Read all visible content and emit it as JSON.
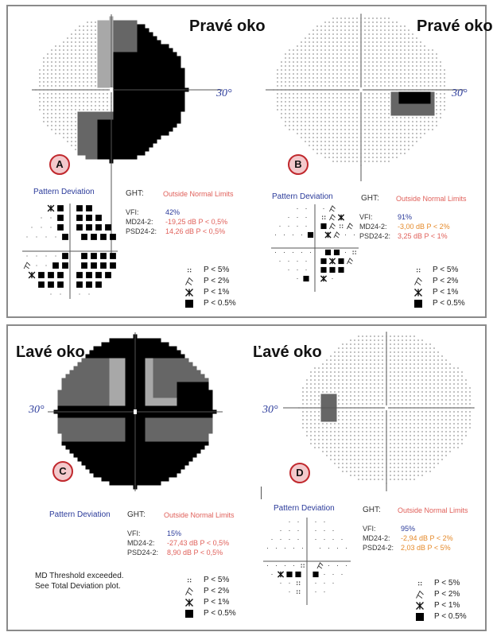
{
  "panels": [
    {
      "id": "A",
      "eye": "Pravé oko",
      "degree": "30°",
      "pd_title": "Pattern Deviation",
      "ght_label": "GHT:",
      "ght_value": "Outside Normal Limits",
      "stats": [
        {
          "label": "VFI:",
          "value": "42%",
          "tone": "blue"
        },
        {
          "label": "MD24-2:",
          "value": "-19,25 dB P < 0,5%",
          "tone": "red"
        },
        {
          "label": "PSD24-2:",
          "value": "14,26 dB P < 0,5%",
          "tone": "red"
        }
      ]
    },
    {
      "id": "B",
      "eye": "Pravé oko",
      "degree": "30°",
      "pd_title": "Pattern Deviation",
      "ght_label": "GHT:",
      "ght_value": "Outside Normal Limits",
      "stats": [
        {
          "label": "VFI:",
          "value": "91%",
          "tone": "blue"
        },
        {
          "label": "MD24-2:",
          "value": "-3,00 dB P < 2%",
          "tone": "orange"
        },
        {
          "label": "PSD24-2:",
          "value": "3,25 dB P < 1%",
          "tone": "red"
        }
      ]
    },
    {
      "id": "C",
      "eye": "Ľavé oko",
      "degree": "30°",
      "pd_title": "Pattern Deviation",
      "ght_label": "GHT:",
      "ght_value": "Outside Normal Limits",
      "stats": [
        {
          "label": "VFI:",
          "value": "15%",
          "tone": "blue"
        },
        {
          "label": "MD24-2:",
          "value": "-27,43 dB P < 0,5%",
          "tone": "red"
        },
        {
          "label": "PSD24-2:",
          "value": "8,90 dB P < 0,5%",
          "tone": "red"
        }
      ],
      "note": [
        "MD Threshold exceeded.",
        "See Total Deviation plot."
      ]
    },
    {
      "id": "D",
      "eye": "Ľavé oko",
      "degree": "30°",
      "pd_title": "Pattern Deviation",
      "ght_label": "GHT:",
      "ght_value": "Outside Normal Limits",
      "stats": [
        {
          "label": "VFI:",
          "value": "95%",
          "tone": "blue"
        },
        {
          "label": "MD24-2:",
          "value": "-2,94 dB P < 2%",
          "tone": "orange"
        },
        {
          "label": "PSD24-2:",
          "value": "2,03 dB P < 5%",
          "tone": "orange"
        }
      ]
    }
  ],
  "legend": [
    "P < 5%",
    "P < 2%",
    "P < 1%",
    "P < 0.5%"
  ]
}
